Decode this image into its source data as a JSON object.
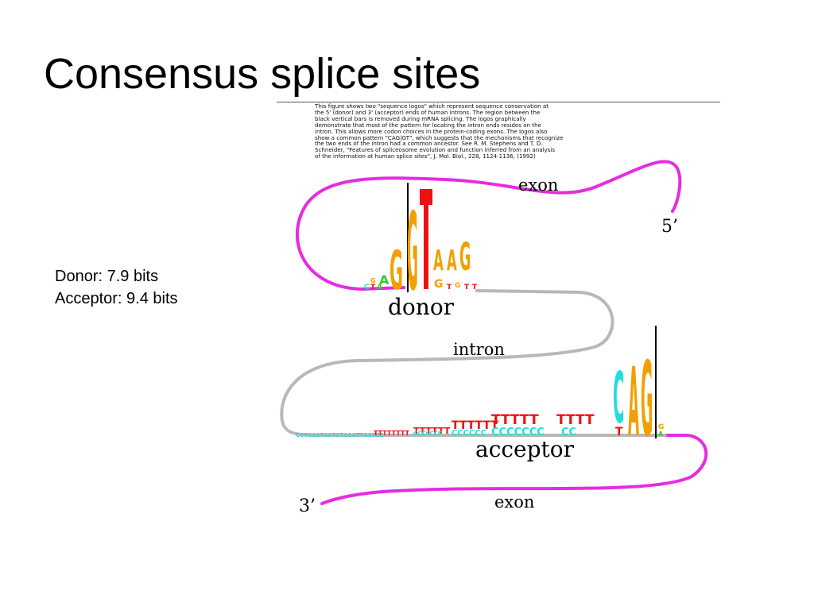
{
  "slide": {
    "title": "Consensus splice sites",
    "caption_lines": [
      "This figure shows two \"sequence logos\" which represent sequence conservation at",
      "the 5' (donor) and 3' (acceptor) ends of human introns.  The region between the",
      "black vertical bars is removed during mRNA splicing.  The logos graphically",
      "demonstrate that most of the pattern for locating the intron ends resides on the",
      "intron.  This allows more codon choices in the protein-coding exons.  The logos also",
      "show a common pattern \"CAG|GT\", which suggests that the mechanisms that recognize",
      "the two ends of the intron had a common ancestor.  See R. M. Stephens and T. D.",
      "Schneider, \"Features of spliceosome evolution and function inferred from an analysis",
      "of the information at human splice sites\", J. Mol. Biol., 228, 1124-1136, (1992)"
    ],
    "stats": {
      "donor": "Donor: 7.9 bits",
      "acceptor": "Acceptor: 9.4 bits"
    }
  },
  "diagram": {
    "labels": {
      "exon_top": "exon",
      "five_prime": "5’",
      "donor": "donor",
      "intron": "intron",
      "acceptor": "acceptor",
      "three_prime": "3’",
      "exon_bottom": "exon"
    },
    "colors": {
      "exon": "#e62ce0",
      "intron": "#b8b8b8",
      "A": "#33cc33",
      "C": "#22dddd",
      "G": "#f2a000",
      "T": "#ee1111"
    },
    "donor_logo_letters": [
      "A",
      "G",
      "G",
      "T",
      "A",
      "A",
      "G"
    ],
    "acceptor_logo_letters": [
      "T",
      "T",
      "T",
      "T",
      "T",
      "T",
      "T",
      "T",
      "T",
      "T",
      "C",
      "C",
      "C",
      "C",
      "C",
      "C",
      "C",
      "C",
      "C",
      "C",
      "C",
      "A",
      "G",
      "G"
    ]
  }
}
